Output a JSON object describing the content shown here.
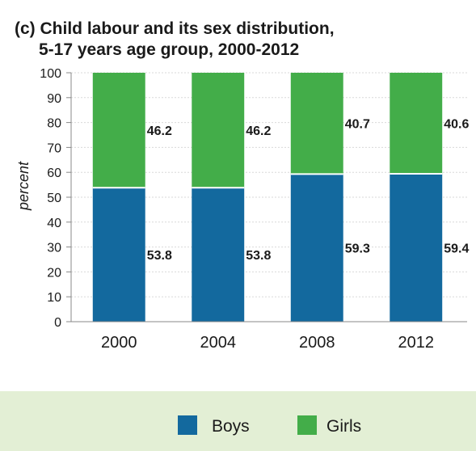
{
  "chart_data": {
    "type": "bar",
    "stacked": true,
    "title_line1": "(c) Child labour and its sex distribution,",
    "title_line2": "5-17 years age group, 2000-2012",
    "xlabel": "",
    "ylabel": "percent",
    "categories": [
      "2000",
      "2004",
      "2008",
      "2012"
    ],
    "ylim": [
      0,
      100
    ],
    "yticks": [
      0,
      10,
      20,
      30,
      40,
      50,
      60,
      70,
      80,
      90,
      100
    ],
    "series": [
      {
        "name": "Boys",
        "color": "#13699e",
        "values": [
          53.8,
          53.8,
          59.3,
          59.4
        ],
        "labels": [
          "53.8",
          "53.8",
          "59.3",
          "59.4"
        ]
      },
      {
        "name": "Girls",
        "color": "#43ad49",
        "values": [
          46.2,
          46.2,
          40.7,
          40.6
        ],
        "labels": [
          "46.2",
          "46.2",
          "40.7",
          "40.6"
        ]
      }
    ],
    "grid": true,
    "legend_position": "bottom"
  },
  "colors": {
    "legend_background": "#e3efd5",
    "axis": "#888888",
    "grid": "#d9d9d9"
  }
}
